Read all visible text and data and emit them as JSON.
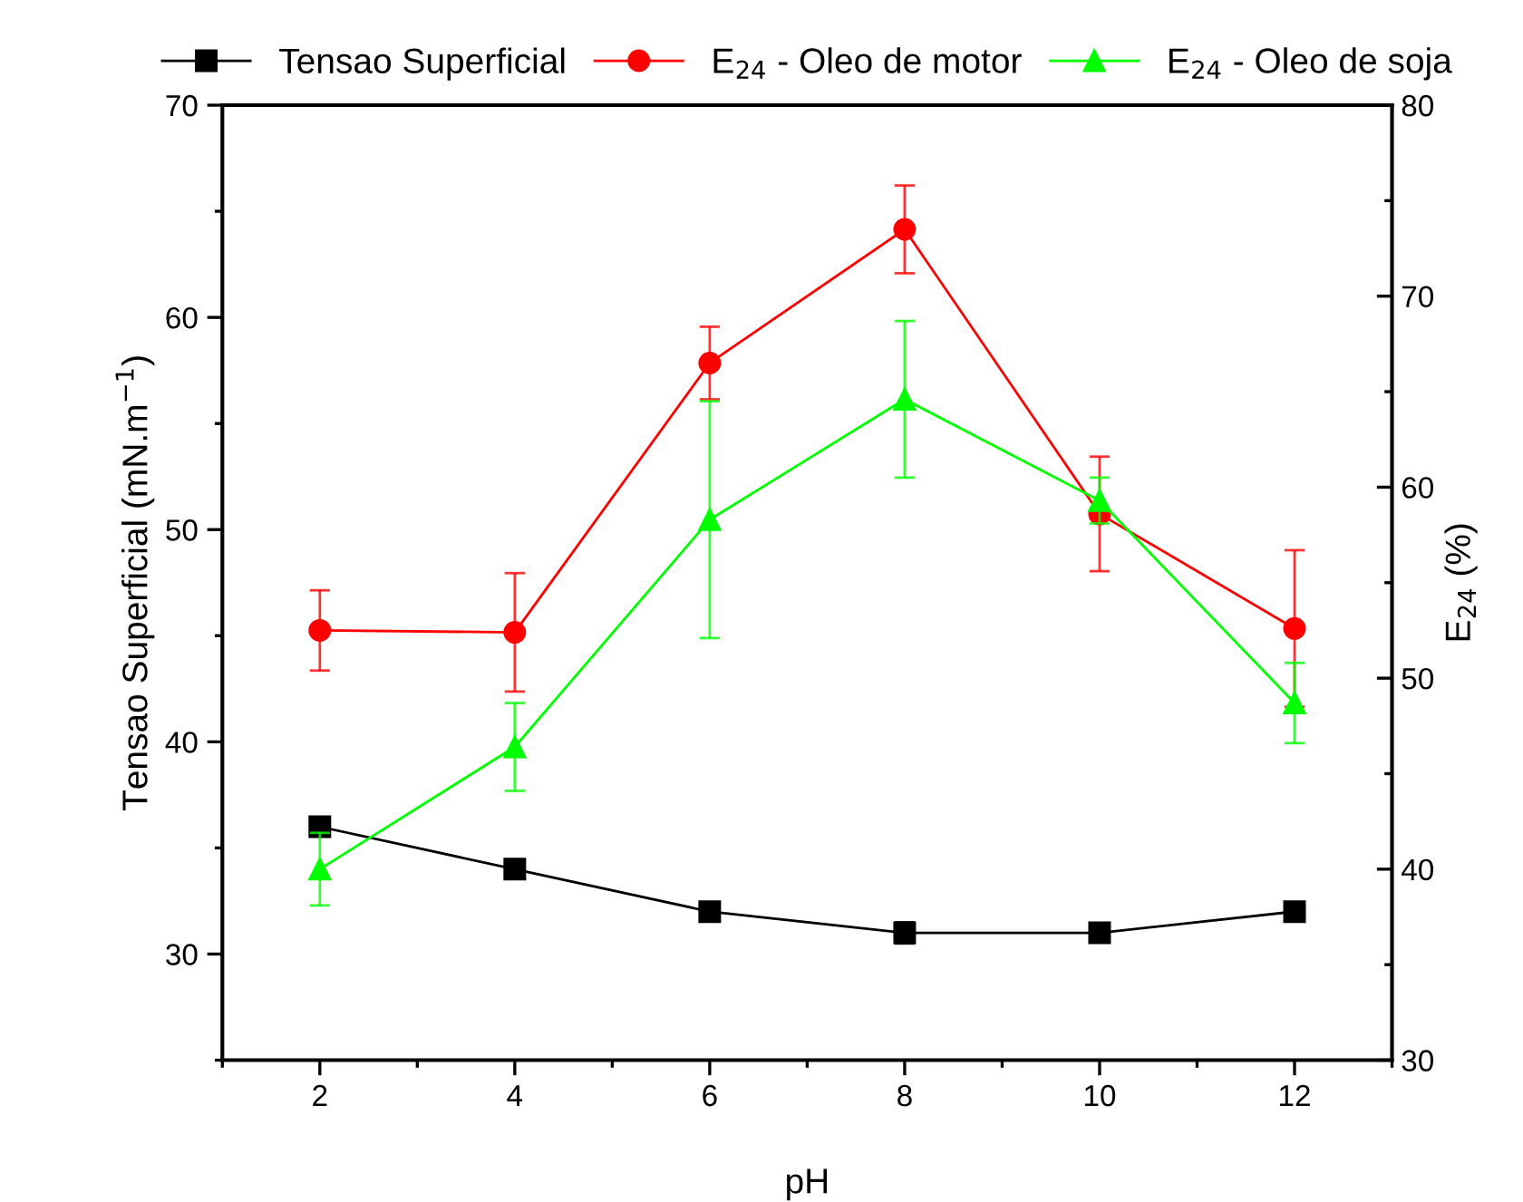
{
  "chart_data": {
    "type": "line",
    "xlabel": "pH",
    "ylabel": "Tensao Superficial (mN.m$^{−1}$)",
    "y2label": "E$_{24}$ (%)",
    "x": [
      2,
      4,
      6,
      8,
      10,
      12
    ],
    "xlim": [
      1,
      13
    ],
    "xticks": [
      2,
      4,
      6,
      8,
      10,
      12
    ],
    "ylim": [
      25,
      70
    ],
    "yticks": [
      30,
      40,
      50,
      60,
      70
    ],
    "y2lim": [
      30,
      80
    ],
    "y2ticks": [
      30,
      40,
      50,
      60,
      70,
      80
    ],
    "grid": false,
    "legend": "top",
    "line_style": "solid",
    "series": [
      {
        "name": "Tensao Superficial",
        "color": "#000000",
        "marker": "square",
        "values": [
          36,
          34,
          32,
          31,
          31,
          32
        ],
        "errors": [
          null,
          null,
          null,
          0.5,
          null,
          null
        ]
      },
      {
        "name": "E$_{24}$ - Oleo de motor",
        "color": "#ff0000",
        "marker": "circle",
        "axis": "y2",
        "values": [
          52.5,
          52.4,
          66.5,
          73.5,
          58.6,
          52.6
        ],
        "errors": [
          2.1,
          3.1,
          1.9,
          2.3,
          3.0,
          4.1
        ]
      },
      {
        "name": "E$_{24}$ - Oleo de soja",
        "color": "#00ff00",
        "marker": "triangle",
        "axis": "y2",
        "values": [
          40.0,
          46.4,
          58.3,
          64.6,
          59.3,
          48.7
        ],
        "errors": [
          1.9,
          2.3,
          6.2,
          4.1,
          1.2,
          2.1
        ]
      }
    ]
  }
}
